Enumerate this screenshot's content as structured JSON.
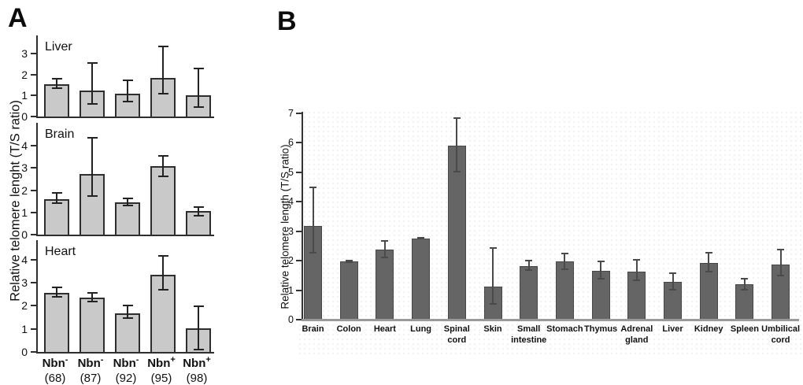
{
  "figure": {
    "panel_a_label": "A",
    "panel_b_label": "B"
  },
  "chart_data": [
    {
      "id": "panel-a",
      "type": "bar",
      "ylabel": "Relative telomere lenght (T/S ratio)",
      "categories": [
        {
          "genotype": "Nbn",
          "sign": "-",
          "n": "(68)"
        },
        {
          "genotype": "Nbn",
          "sign": "-",
          "n": "(87)"
        },
        {
          "genotype": "Nbn",
          "sign": "-",
          "n": "(92)"
        },
        {
          "genotype": "Nbn",
          "sign": "+",
          "n": "(95)"
        },
        {
          "genotype": "Nbn",
          "sign": "+",
          "n": "(98)"
        }
      ],
      "subplots": [
        {
          "title": "Liver",
          "ylim": [
            0,
            3
          ],
          "ticks": [
            0,
            1,
            2,
            3
          ],
          "values": [
            1.55,
            1.22,
            1.07,
            1.82,
            1.03
          ],
          "err_lo": [
            1.3,
            0.55,
            0.67,
            1.05,
            0.42
          ],
          "err_hi": [
            1.82,
            2.6,
            1.78,
            3.38,
            2.33
          ]
        },
        {
          "title": "Brain",
          "ylim": [
            0,
            4
          ],
          "ticks": [
            0,
            1,
            2,
            3,
            4
          ],
          "values": [
            1.6,
            2.73,
            1.44,
            3.07,
            1.05
          ],
          "err_lo": [
            1.4,
            1.7,
            1.27,
            2.58,
            0.82
          ],
          "err_hi": [
            1.9,
            4.4,
            1.65,
            3.6,
            1.27
          ]
        },
        {
          "title": "Heart",
          "ylim": [
            0,
            4
          ],
          "ticks": [
            0,
            1,
            2,
            3,
            4
          ],
          "values": [
            2.55,
            2.37,
            1.66,
            3.35,
            1.02
          ],
          "err_lo": [
            2.36,
            2.16,
            1.44,
            2.67,
            0.06
          ],
          "err_hi": [
            2.84,
            2.59,
            2.06,
            4.2,
            2.0
          ]
        }
      ],
      "legend": "none",
      "grid": false
    },
    {
      "id": "panel-b",
      "type": "bar",
      "ylabel": "Relative telomere length (T/S ratio)",
      "ylim": [
        0,
        7
      ],
      "ticks": [
        0,
        1,
        2,
        3,
        4,
        5,
        6,
        7
      ],
      "categories": [
        [
          "Brain"
        ],
        [
          "Colon"
        ],
        [
          "Heart"
        ],
        [
          "Lung"
        ],
        [
          "Spinal",
          "cord"
        ],
        [
          "Skin"
        ],
        [
          "Small",
          "intestine"
        ],
        [
          "Stomach"
        ],
        [
          "Thymus"
        ],
        [
          "Adrenal",
          "gland"
        ],
        [
          "Liver"
        ],
        [
          "Kidney"
        ],
        [
          "Spleen"
        ],
        [
          "Umbilical",
          "cord"
        ]
      ],
      "values": [
        3.14,
        1.95,
        2.35,
        2.73,
        5.88,
        1.1,
        1.8,
        1.94,
        1.63,
        1.6,
        1.25,
        1.9,
        1.17,
        1.85
      ],
      "err_lo": [
        2.23,
        1.9,
        2.06,
        2.69,
        4.97,
        0.49,
        1.62,
        1.67,
        1.34,
        1.27,
        0.97,
        1.57,
        0.97,
        1.45
      ],
      "err_hi": [
        4.5,
        2.0,
        2.67,
        2.77,
        6.85,
        2.43,
        2.0,
        2.24,
        1.97,
        2.04,
        1.57,
        2.27,
        1.4,
        2.38
      ],
      "legend": "none",
      "grid": false
    }
  ],
  "colors": {
    "axis": "#2e2e2e",
    "a_fill": "#c9c9c9",
    "a_border": "#2e2e2e",
    "b_fill": "#656565",
    "b_border": "#474747",
    "err_a": "#222222",
    "err_b": "#4a4a4a",
    "baseline_b": "#9a9a9a"
  }
}
